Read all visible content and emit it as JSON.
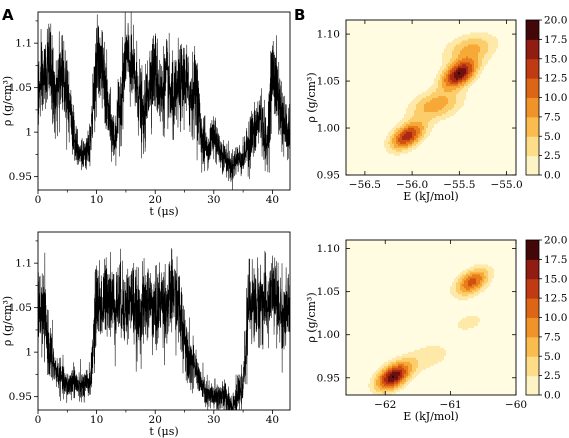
{
  "panel_labels": [
    "A",
    "B"
  ],
  "chart_data": [
    {
      "type": "line",
      "panel": "A",
      "position": "top",
      "xlabel": "t (μs)",
      "ylabel": "ρ (g/cm³)",
      "xlim": [
        0,
        43
      ],
      "ylim": [
        0.935,
        1.135
      ],
      "xticks": [
        0,
        10,
        20,
        30,
        40
      ],
      "yticks": [
        0.95,
        1,
        1.05,
        1.1
      ],
      "ytick_labels": [
        "0.95",
        "1",
        "1.05",
        "1.1"
      ],
      "grid": false,
      "line_color": "#000000",
      "series": [
        {
          "x": [
            0,
            1,
            2,
            3,
            4,
            5,
            6,
            7,
            8,
            9,
            10,
            11,
            12,
            13,
            14,
            15,
            16,
            17,
            18,
            19,
            20,
            21,
            22,
            23,
            24,
            25,
            26,
            27,
            28,
            29,
            30,
            31,
            32,
            33,
            34,
            35,
            36,
            37,
            38,
            39,
            40,
            41,
            42,
            43
          ],
          "y": [
            1.04,
            1.06,
            1.08,
            1.03,
            1.07,
            1.05,
            1.0,
            0.98,
            0.97,
            0.99,
            1.08,
            1.07,
            1.02,
            0.99,
            1.03,
            1.09,
            1.07,
            1.05,
            1.01,
            1.06,
            1.07,
            1.04,
            1.06,
            1.03,
            1.05,
            1.06,
            1.04,
            1.05,
            0.99,
            0.98,
            1.0,
            0.98,
            0.97,
            0.96,
            0.97,
            0.97,
            0.99,
            1.0,
            1.02,
            0.98,
            1.07,
            1.04,
            1.01,
            0.99
          ]
        }
      ]
    },
    {
      "type": "line",
      "panel": "A",
      "position": "bottom",
      "xlabel": "t (μs)",
      "ylabel": "ρ (g/cm³)",
      "xlim": [
        0,
        43
      ],
      "ylim": [
        0.935,
        1.135
      ],
      "xticks": [
        0,
        10,
        20,
        30,
        40
      ],
      "yticks": [
        0.95,
        1,
        1.05,
        1.1
      ],
      "ytick_labels": [
        "0.95",
        "1",
        "1.05",
        "1.1"
      ],
      "grid": false,
      "line_color": "#000000",
      "series": [
        {
          "x": [
            0,
            1,
            2,
            3,
            4,
            5,
            6,
            7,
            8,
            9,
            10,
            11,
            12,
            13,
            14,
            15,
            16,
            17,
            18,
            19,
            20,
            21,
            22,
            23,
            24,
            25,
            26,
            27,
            28,
            29,
            30,
            31,
            32,
            33,
            34,
            35,
            36,
            37,
            38,
            39,
            40,
            41,
            42,
            43
          ],
          "y": [
            1.05,
            1.04,
            1.0,
            0.98,
            0.97,
            0.96,
            0.97,
            0.96,
            0.96,
            0.97,
            1.06,
            1.05,
            1.07,
            1.05,
            1.06,
            1.05,
            1.06,
            1.04,
            1.05,
            1.06,
            1.04,
            1.06,
            1.05,
            1.07,
            1.05,
            1.02,
            0.99,
            0.98,
            0.96,
            0.95,
            0.95,
            0.95,
            0.95,
            0.94,
            0.95,
            0.96,
            1.06,
            1.05,
            1.06,
            1.05,
            1.07,
            1.05,
            1.04,
            1.05
          ]
        }
      ]
    },
    {
      "type": "heatmap",
      "panel": "B",
      "position": "top",
      "xlabel": "E (kJ/mol)",
      "ylabel": "ρ (g/cm³)",
      "xlim": [
        -56.7,
        -54.9
      ],
      "ylim": [
        0.95,
        1.115
      ],
      "xticks": [
        -56.5,
        -56.0,
        -55.5,
        -55.0
      ],
      "xtick_labels": [
        "−56.5",
        "−56.0",
        "−55.5",
        "−55.0"
      ],
      "yticks": [
        0.95,
        1.0,
        1.05,
        1.1
      ],
      "ytick_labels": [
        "0.95",
        "1.00",
        "1.05",
        "1.10"
      ],
      "colorbar": {
        "range": [
          0,
          20
        ],
        "ticks": [
          "0.0",
          "2.5",
          "5.0",
          "7.5",
          "10.0",
          "12.5",
          "15.0",
          "17.5",
          "20.0"
        ],
        "colormap": "afmhot_r"
      },
      "density_peaks": [
        {
          "E": -55.5,
          "rho": 1.058,
          "height": 19.5
        },
        {
          "E": -56.05,
          "rho": 0.992,
          "height": 16.5
        },
        {
          "E": -55.75,
          "rho": 1.025,
          "height": 9.0
        },
        {
          "E": -55.38,
          "rho": 1.085,
          "height": 8.0
        }
      ]
    },
    {
      "type": "heatmap",
      "panel": "B",
      "position": "bottom",
      "xlabel": "E (kJ/mol)",
      "ylabel": "ρ (g/cm³)",
      "xlim": [
        -62.6,
        -60.0
      ],
      "ylim": [
        0.93,
        1.11
      ],
      "xticks": [
        -62,
        -61,
        -60
      ],
      "xtick_labels": [
        "−62",
        "−61",
        "−60"
      ],
      "yticks": [
        0.95,
        1.0,
        1.05,
        1.1
      ],
      "ytick_labels": [
        "0.95",
        "1.00",
        "1.05",
        "1.10"
      ],
      "colorbar": {
        "range": [
          0,
          20
        ],
        "ticks": [
          "0.0",
          "2.5",
          "5.0",
          "7.5",
          "10.0",
          "12.5",
          "15.0",
          "17.5",
          "20.0"
        ],
        "colormap": "afmhot_r"
      },
      "density_peaks": [
        {
          "E": -61.88,
          "rho": 0.952,
          "height": 19.8
        },
        {
          "E": -60.67,
          "rho": 1.062,
          "height": 13.5
        },
        {
          "E": -61.35,
          "rho": 0.975,
          "height": 4.0
        },
        {
          "E": -60.72,
          "rho": 1.015,
          "height": 3.0
        }
      ]
    }
  ]
}
